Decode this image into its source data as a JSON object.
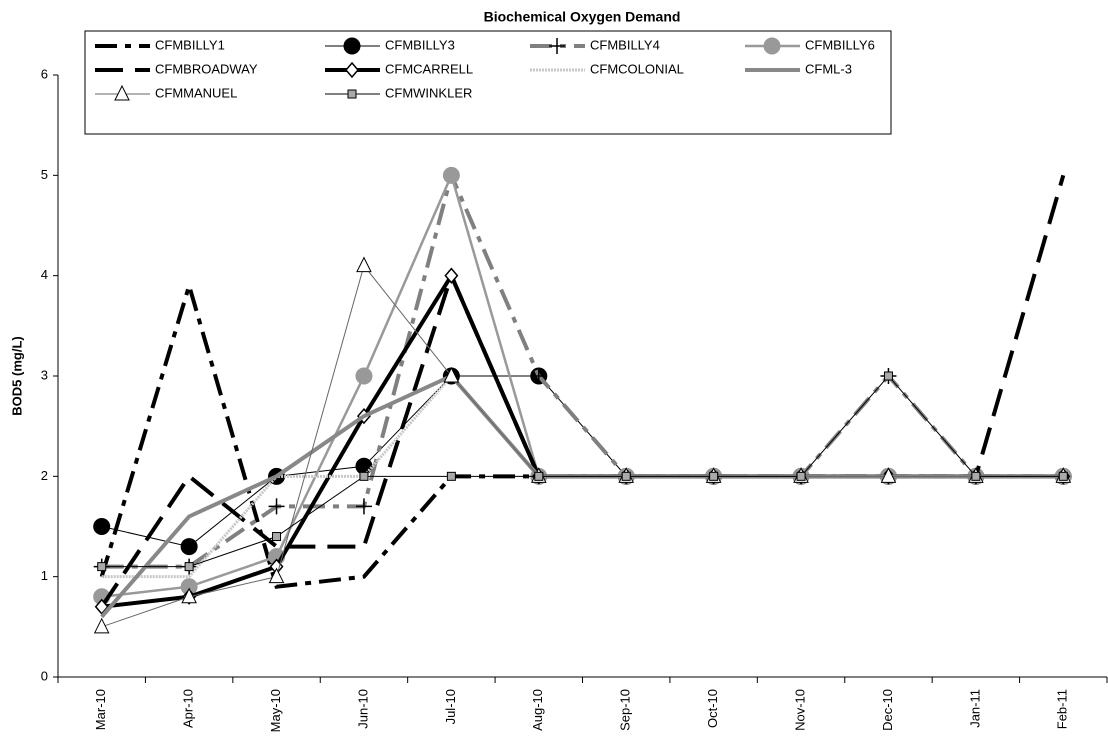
{
  "chart_data": {
    "type": "line",
    "title": "Biochemical Oxygen Demand",
    "y_label": "BOD5 (mg/L)",
    "categories": [
      "Mar-10",
      "Apr-10",
      "May-10",
      "Jun-10",
      "Jul-10",
      "Aug-10",
      "Sep-10",
      "Oct-10",
      "Nov-10",
      "Dec-10",
      "Jan-11",
      "Feb-11"
    ],
    "ylim": [
      0,
      6
    ],
    "yticks": [
      0,
      1,
      2,
      3,
      4,
      5,
      6
    ],
    "grid": false,
    "series": [
      {
        "name": "CFMBILLY1",
        "color": "#000000",
        "width": 4,
        "dash": "22 8 6 8",
        "marker": "none",
        "values": [
          1.0,
          3.9,
          0.9,
          1.0,
          2,
          2,
          2,
          2,
          2,
          2,
          2,
          2
        ]
      },
      {
        "name": "CFMBILLY3",
        "color": "#000000",
        "width": 1,
        "dash": "none",
        "marker": "circle",
        "values": [
          1.5,
          1.3,
          2.0,
          2.1,
          3.0,
          3.0,
          2,
          2,
          2,
          2,
          2,
          2
        ]
      },
      {
        "name": "CFMBILLY4",
        "color": "#808080",
        "width": 4,
        "dash": "22 8 6 8",
        "marker": "plus",
        "values": [
          1.1,
          1.1,
          1.7,
          1.7,
          5.0,
          3.0,
          2,
          2,
          2,
          3,
          2,
          2
        ]
      },
      {
        "name": "CFMBILLY6",
        "color": "#999999",
        "width": 2.5,
        "dash": "none",
        "marker": "circle",
        "values": [
          0.8,
          0.9,
          1.2,
          3.0,
          5.0,
          2,
          2,
          2,
          2,
          2,
          2,
          2
        ]
      },
      {
        "name": "CFMBROADWAY",
        "color": "#000000",
        "width": 4,
        "dash": "28 12",
        "marker": "none",
        "values": [
          0.7,
          2.0,
          1.3,
          1.3,
          4.0,
          2,
          2,
          2,
          2,
          2,
          2,
          5.0
        ]
      },
      {
        "name": "CFMCARRELL",
        "color": "#000000",
        "width": 4,
        "dash": "none",
        "marker": "diamond",
        "values": [
          0.7,
          0.8,
          1.1,
          2.6,
          4.0,
          2,
          2,
          2,
          2,
          2,
          2,
          2
        ]
      },
      {
        "name": "CFMCOLONIAL",
        "color": "#c8c8c8",
        "width": 3,
        "dash": "2 1",
        "marker": "none",
        "values": [
          1.0,
          1.0,
          2.0,
          2.0,
          3.0,
          2,
          2,
          2,
          2,
          2,
          2,
          2
        ]
      },
      {
        "name": "CFML-3",
        "color": "#888888",
        "width": 4,
        "dash": "none",
        "marker": "none",
        "values": [
          0.6,
          1.6,
          2.0,
          2.6,
          3.0,
          2,
          2,
          2,
          2,
          2,
          2,
          2
        ]
      },
      {
        "name": "CFMMANUEL",
        "color": "#666666",
        "width": 1,
        "dash": "none",
        "marker": "triangle",
        "values": [
          0.5,
          0.8,
          1.0,
          4.1,
          3.0,
          2,
          2,
          2,
          2,
          2,
          2,
          2
        ]
      },
      {
        "name": "CFMWINKLER",
        "color": "#000000",
        "width": 1,
        "dash": "none",
        "marker": "square",
        "values": [
          1.1,
          1.1,
          1.4,
          2.0,
          2.0,
          2,
          2,
          2,
          2,
          3,
          2,
          2
        ]
      }
    ]
  }
}
